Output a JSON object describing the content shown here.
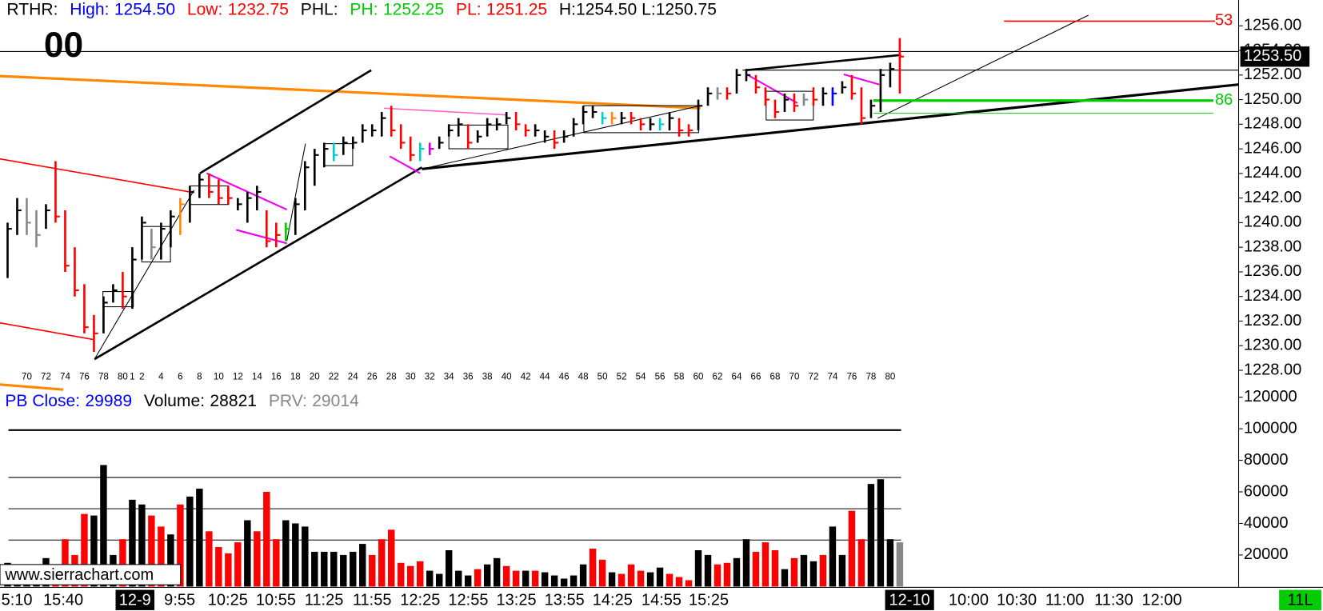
{
  "header": {
    "study": "RTHR:",
    "high_label": "High:",
    "high": "1254.50",
    "low_label": "Low:",
    "low": "1232.75",
    "phl": "PHL:",
    "ph_label": "PH:",
    "ph": "1252.25",
    "pl_label": "PL:",
    "pl": "1251.25",
    "hl": "H:1254.50 L:1250.75"
  },
  "counter": "00",
  "volume_header": {
    "close_label": "PB Close:",
    "close": "29989",
    "volume_label": "Volume:",
    "volume": "28821",
    "prv_label": "PRV:",
    "prv": "29014"
  },
  "annotations": {
    "top_level": "53",
    "green_level": "86"
  },
  "watermark": "www.sierrachart.com",
  "time_axis": [
    "5:10",
    "15:40",
    "12-9",
    "9:55",
    "10:25",
    "10:55",
    "11:25",
    "11:55",
    "12:25",
    "12:55",
    "13:25",
    "13:55",
    "14:25",
    "14:55",
    "15:25",
    "12-10",
    "10:00",
    "10:30",
    "11:00",
    "11:30",
    "12:00"
  ],
  "corner_label": "11L",
  "chart_data": [
    {
      "type": "ohlc",
      "categories": [
        null,
        null,
        "70",
        null,
        "72",
        null,
        "74",
        null,
        "76",
        null,
        "78",
        null,
        "80",
        "1",
        "2",
        null,
        "4",
        null,
        "6",
        null,
        "8",
        null,
        "10",
        null,
        "12",
        null,
        "14",
        null,
        "16",
        null,
        "18",
        null,
        "20",
        null,
        "22",
        null,
        "24",
        null,
        "26",
        null,
        "28",
        null,
        "30",
        null,
        "32",
        null,
        "34",
        null,
        "36",
        null,
        "38",
        null,
        "40",
        null,
        "42",
        null,
        "44",
        null,
        "46",
        null,
        "48",
        null,
        "50",
        null,
        "52",
        null,
        "54",
        null,
        "56",
        null,
        "58",
        null,
        "60",
        null,
        "62",
        null,
        "64",
        null,
        "66",
        null,
        "68",
        null,
        "70",
        null,
        "72",
        null,
        "74",
        null,
        "76",
        null,
        "78",
        null,
        "80",
        null
      ],
      "high": [
        1240,
        1242,
        1242,
        1241,
        1241.5,
        1245,
        1241,
        1238,
        1235,
        1232.5,
        1234,
        1235,
        1236,
        1238,
        1240.5,
        1239.5,
        1240,
        1241,
        1242,
        1243,
        1244,
        1244,
        1243.5,
        1243,
        1242,
        1242.5,
        1243,
        1241,
        1240,
        1240,
        1242,
        1245,
        1246,
        1246.5,
        1246.5,
        1247,
        1247,
        1248,
        1248,
        1249,
        1249.5,
        1248,
        1247,
        1246.5,
        1246.5,
        1247,
        1248,
        1248.5,
        1248,
        1247.5,
        1248.5,
        1248.5,
        1249,
        1249,
        1248,
        1248,
        1247.5,
        1247.5,
        1247.5,
        1248.5,
        1249.5,
        1249.5,
        1249,
        1249,
        1249,
        1249,
        1248.5,
        1248.5,
        1248.5,
        1249,
        1248.5,
        1248,
        1250,
        1251,
        1251,
        1251,
        1252.5,
        1252.5,
        1252,
        1251,
        1250,
        1250.5,
        1250.5,
        1250.5,
        1251,
        1251,
        1251,
        1251.5,
        1252,
        1251,
        1250,
        1252.5,
        1253,
        1255
      ],
      "low": [
        1235.5,
        1239,
        1239,
        1238,
        1239.5,
        1240,
        1236,
        1234,
        1231,
        1229.5,
        1231,
        1233.5,
        1233,
        1233,
        1237,
        1237,
        1237,
        1238,
        1239,
        1240,
        1242,
        1242,
        1241.5,
        1241.5,
        1241,
        1240,
        1241,
        1238,
        1238,
        1238.5,
        1239,
        1241,
        1243,
        1244.5,
        1245,
        1245.5,
        1246,
        1246.5,
        1247,
        1247,
        1247,
        1246,
        1245,
        1245,
        1245.5,
        1246,
        1247,
        1247,
        1246,
        1246.5,
        1247,
        1247.5,
        1248,
        1247.5,
        1247,
        1247,
        1246.5,
        1246,
        1246.5,
        1247,
        1248,
        1248.5,
        1248,
        1248,
        1248,
        1248,
        1247.5,
        1247.5,
        1247.5,
        1247.5,
        1247,
        1247,
        1247.5,
        1249.5,
        1250,
        1250,
        1250.5,
        1251.5,
        1250.5,
        1249.5,
        1248.5,
        1249,
        1249,
        1249.5,
        1249.5,
        1249.5,
        1249.5,
        1250.5,
        1250,
        1248,
        1248.5,
        1249,
        1251,
        1250.5
      ],
      "close": [
        1239.5,
        1241,
        1240,
        1239,
        1241,
        1240.5,
        1236.5,
        1234.5,
        1231.5,
        1231,
        1233.5,
        1234.5,
        1234,
        1237,
        1240,
        1238,
        1239.5,
        1240.5,
        1241.5,
        1242.5,
        1243.5,
        1242.5,
        1242,
        1242,
        1241.5,
        1242,
        1242.5,
        1238.5,
        1239,
        1239.5,
        1241.5,
        1244.5,
        1245.5,
        1246,
        1245.5,
        1246.5,
        1246.5,
        1247.5,
        1247.5,
        1248.5,
        1247.5,
        1246.5,
        1245.5,
        1246,
        1246,
        1246.5,
        1247.5,
        1248,
        1246.5,
        1247,
        1248,
        1248,
        1248.5,
        1248,
        1247.5,
        1247.5,
        1247,
        1246.5,
        1247,
        1248,
        1249,
        1249,
        1248.5,
        1248.5,
        1248.5,
        1248.5,
        1248,
        1248,
        1248,
        1248.5,
        1247.5,
        1247.5,
        1249.5,
        1250.5,
        1250.5,
        1250.5,
        1252,
        1252,
        1251,
        1250,
        1249,
        1250,
        1249.5,
        1250,
        1250,
        1250.5,
        1250.5,
        1251,
        1250.5,
        1248.5,
        1249.5,
        1252,
        1252.5,
        1253.5
      ],
      "colors": [
        "#000",
        "#000",
        "#888",
        "#888",
        "#000",
        "#f00",
        "#f00",
        "#f00",
        "#f00",
        "#f00",
        "#000",
        "#000",
        "#f00",
        "#000",
        "#000",
        "#888",
        "#000",
        "#000",
        "#f80",
        "#000",
        "#000",
        "#f00",
        "#f00",
        "#f00",
        "#000",
        "#000",
        "#000",
        "#f00",
        "#f00",
        "#0c0",
        "#000",
        "#000",
        "#000",
        "#000",
        "#0cc",
        "#000",
        "#000",
        "#000",
        "#000",
        "#000",
        "#f00",
        "#f00",
        "#f00",
        "#0cc",
        "#c0c",
        "#000",
        "#000",
        "#000",
        "#f00",
        "#000",
        "#000",
        "#000",
        "#000",
        "#f00",
        "#f00",
        "#000",
        "#000",
        "#f00",
        "#000",
        "#000",
        "#000",
        "#000",
        "#0cc",
        "#f80",
        "#000",
        "#f00",
        "#f00",
        "#000",
        "#0cc",
        "#000",
        "#f00",
        "#f00",
        "#000",
        "#000",
        "#888",
        "#f00",
        "#000",
        "#000",
        "#f00",
        "#f00",
        "#f00",
        "#000",
        "#f00",
        "#888",
        "#f00",
        "#000",
        "#00f",
        "#000",
        "#f00",
        "#f00",
        "#000",
        "#000",
        "#000",
        "#f00"
      ],
      "ylim": [
        1226.5,
        1258.1
      ],
      "yticks": [
        {
          "value": 1228,
          "label": "1228.00"
        },
        {
          "value": 1230,
          "label": "1230.00"
        },
        {
          "value": 1232,
          "label": "1232.00"
        },
        {
          "value": 1234,
          "label": "1234.00"
        },
        {
          "value": 1236,
          "label": "1236.00"
        },
        {
          "value": 1238,
          "label": "1238.00"
        },
        {
          "value": 1240,
          "label": "1240.00"
        },
        {
          "value": 1242,
          "label": "1242.00"
        },
        {
          "value": 1244,
          "label": "1244.00"
        },
        {
          "value": 1246,
          "label": "1246.00"
        },
        {
          "value": 1248,
          "label": "1248.00"
        },
        {
          "value": 1250,
          "label": "1250.00"
        },
        {
          "value": 1252,
          "label": "1252.00"
        },
        {
          "value": 1254,
          "label": "1254.00"
        },
        {
          "value": 1256,
          "label": "1256.00"
        }
      ],
      "last_price": {
        "value": 1253.5,
        "label": "1253.50"
      }
    },
    {
      "type": "bar",
      "values": [
        15000,
        10000,
        8000,
        9000,
        18000,
        12000,
        30000,
        20000,
        46000,
        45000,
        77000,
        20000,
        30000,
        55000,
        52000,
        45000,
        38000,
        33000,
        52000,
        57000,
        62000,
        35000,
        25000,
        21000,
        28000,
        42000,
        35000,
        60000,
        30000,
        42000,
        40000,
        38000,
        22000,
        22000,
        22000,
        20000,
        22000,
        27000,
        20000,
        30000,
        36000,
        15000,
        13000,
        16000,
        10000,
        8000,
        23000,
        10000,
        7000,
        11000,
        14000,
        18000,
        13000,
        10000,
        10000,
        10000,
        9000,
        7000,
        5000,
        7000,
        14000,
        24000,
        17000,
        9000,
        8000,
        14000,
        10000,
        9000,
        12000,
        8000,
        6000,
        4000,
        23000,
        20000,
        14000,
        15000,
        18000,
        30000,
        22000,
        28000,
        23000,
        11000,
        18000,
        20000,
        16000,
        20000,
        38000,
        20000,
        48000,
        30000,
        65000,
        68000,
        30000,
        28000
      ],
      "colors": [
        "#000",
        "#000",
        "#000",
        "#000",
        "#000",
        "#f00",
        "#f00",
        "#f00",
        "#f00",
        "#000",
        "#000",
        "#000",
        "#f00",
        "#000",
        "#000",
        "#f00",
        "#f00",
        "#000",
        "#f00",
        "#000",
        "#000",
        "#f00",
        "#f00",
        "#f00",
        "#f00",
        "#000",
        "#f00",
        "#f00",
        "#f00",
        "#000",
        "#000",
        "#000",
        "#000",
        "#000",
        "#000",
        "#000",
        "#000",
        "#000",
        "#f00",
        "#f00",
        "#f00",
        "#f00",
        "#f00",
        "#f00",
        "#000",
        "#000",
        "#000",
        "#000",
        "#000",
        "#f00",
        "#000",
        "#000",
        "#f00",
        "#f00",
        "#000",
        "#f00",
        "#000",
        "#000",
        "#000",
        "#000",
        "#000",
        "#f00",
        "#f00",
        "#000",
        "#f00",
        "#f00",
        "#f00",
        "#000",
        "#000",
        "#f00",
        "#f00",
        "#f00",
        "#000",
        "#000",
        "#f00",
        "#f00",
        "#000",
        "#000",
        "#f00",
        "#f00",
        "#f00",
        "#000",
        "#f00",
        "#000",
        "#000",
        "#f00",
        "#000",
        "#000",
        "#f00",
        "#f00",
        "#000",
        "#000",
        "#000",
        "#888"
      ],
      "ylim": [
        0,
        124300
      ],
      "yticks": [
        20000,
        40000,
        60000,
        80000,
        100000,
        120000
      ]
    }
  ]
}
